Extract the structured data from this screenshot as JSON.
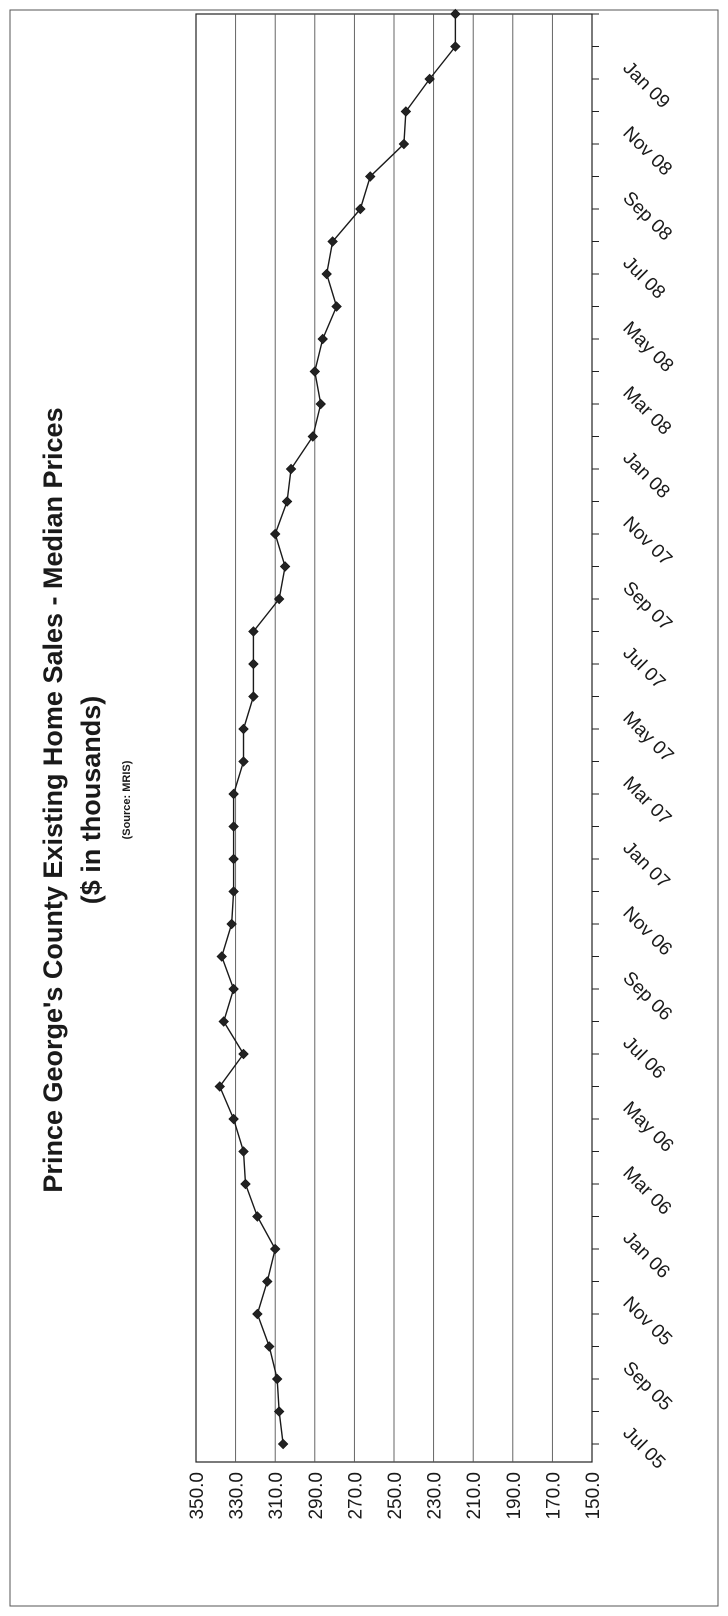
{
  "chart_data": {
    "type": "line",
    "title": "Prince George's County Existing Home Sales - Median Prices",
    "subtitle": "($ in thousands)",
    "source": "(Source: MRIS)",
    "xlabel": "",
    "ylabel": "",
    "ylim": [
      150,
      350
    ],
    "y_ticks": [
      "350.0",
      "330.0",
      "310.0",
      "290.0",
      "270.0",
      "250.0",
      "230.0",
      "210.0",
      "190.0",
      "170.0",
      "150.0"
    ],
    "x_tick_labels": [
      "Jul 05",
      "Sep 05",
      "Nov 05",
      "Jan 06",
      "Mar 06",
      "May 06",
      "Jul 06",
      "Sep 06",
      "Nov 06",
      "Jan 07",
      "Mar 07",
      "May 07",
      "Jul 07",
      "Sep 07",
      "Nov 07",
      "Jan 08",
      "Mar 08",
      "May 08",
      "Jul 08",
      "Sep 08",
      "Nov 08",
      "Jan 09"
    ],
    "grid": true,
    "legend": "none",
    "series": [
      {
        "color": "#1a1a1a",
        "x": [
          "Jul 05",
          "Aug 05",
          "Sep 05",
          "Oct 05",
          "Nov 05",
          "Dec 05",
          "Jan 06",
          "Feb 06",
          "Mar 06",
          "Apr 06",
          "May 06",
          "Jun 06",
          "Jul 06",
          "Aug 06",
          "Sep 06",
          "Oct 06",
          "Nov 06",
          "Dec 06",
          "Jan 07",
          "Feb 07",
          "Mar 07",
          "Apr 07",
          "May 07",
          "Jun 07",
          "Jul 07",
          "Aug 07",
          "Sep 07",
          "Oct 07",
          "Nov 07",
          "Dec 07",
          "Jan 08",
          "Feb 08",
          "Mar 08",
          "Apr 08",
          "May 08",
          "Jun 08",
          "Jul 08",
          "Aug 08",
          "Sep 08",
          "Oct 08",
          "Nov 08",
          "Dec 08",
          "Jan 09",
          "Feb 09",
          "Mar 09"
        ],
        "values": [
          306,
          308,
          309,
          313,
          319,
          314,
          310,
          319,
          325,
          326,
          331,
          338,
          326,
          336,
          331,
          337,
          332,
          331,
          331,
          331,
          331,
          326,
          326,
          321,
          321,
          321,
          308,
          305,
          310,
          304,
          302,
          291,
          287,
          290,
          286,
          279,
          284,
          281,
          267,
          262,
          245,
          244,
          232,
          219,
          219
        ]
      }
    ]
  }
}
